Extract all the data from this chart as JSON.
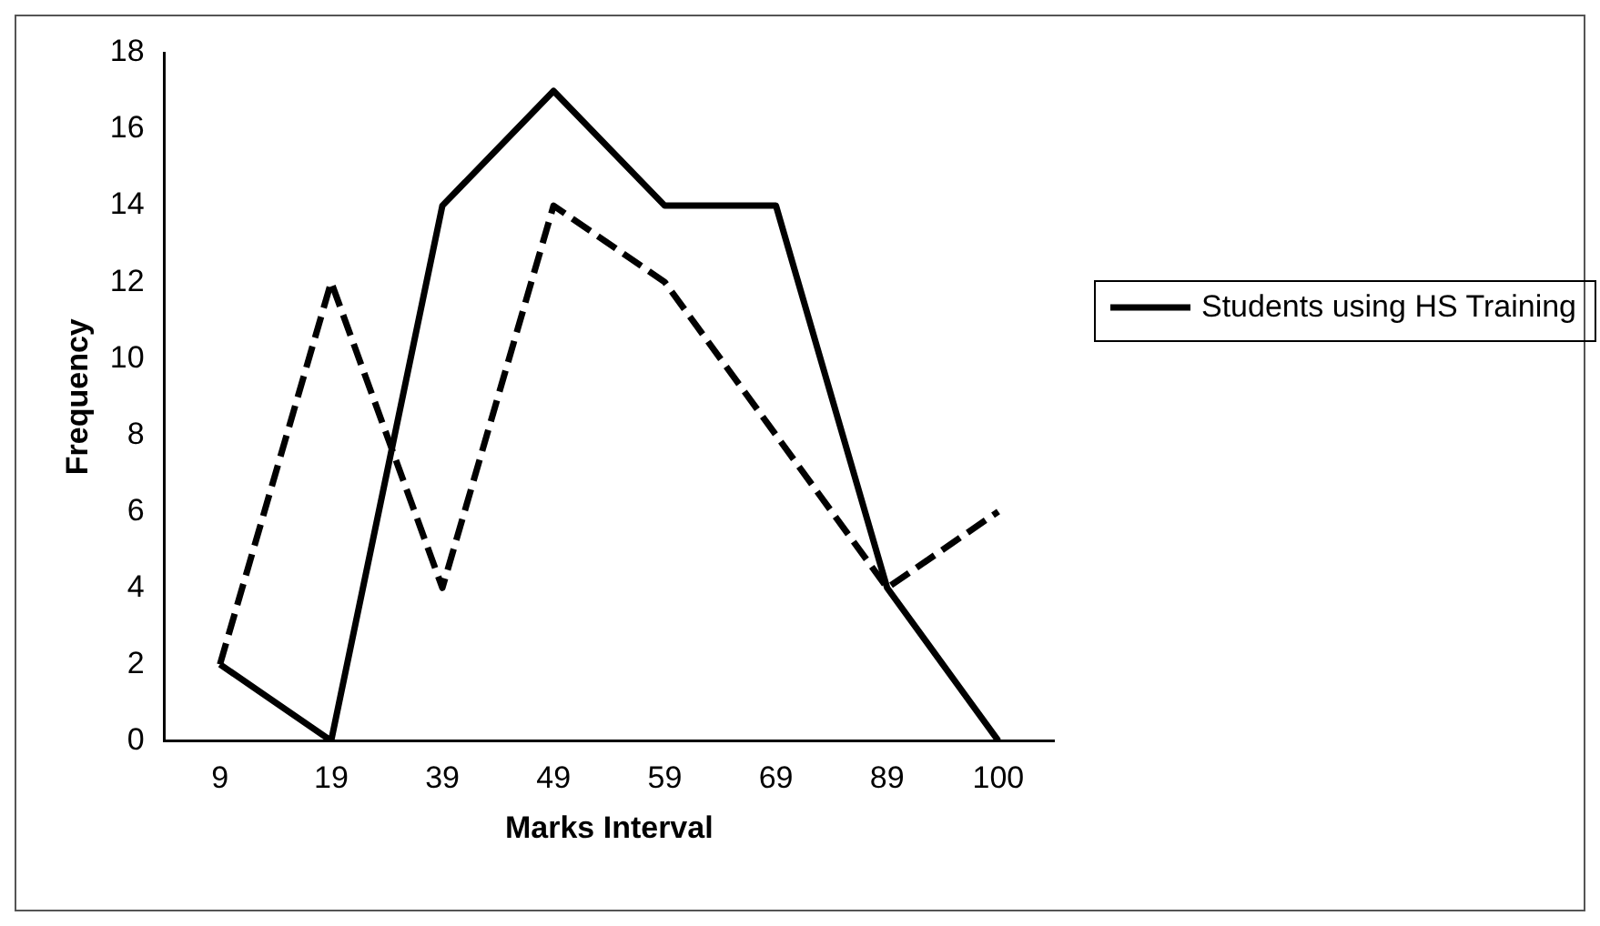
{
  "chart_data": {
    "type": "line",
    "xlabel": "Marks Interval",
    "ylabel": "Frequency",
    "categories": [
      "9",
      "19",
      "39",
      "49",
      "59",
      "69",
      "89",
      "100"
    ],
    "series": [
      {
        "name": "Students using HS Training",
        "color": "#000000",
        "values": [
          2,
          0,
          14,
          17,
          14,
          14,
          4,
          0
        ],
        "line_style": "solid"
      },
      {
        "color": "#000000",
        "values": [
          2,
          12,
          4,
          14,
          12,
          8,
          4,
          6
        ],
        "line_style": "dashed"
      }
    ],
    "ylim": [
      0,
      18
    ],
    "yticks": [
      0,
      2,
      4,
      6,
      8,
      10,
      12,
      14,
      16,
      18
    ],
    "grid": false,
    "legend": "right",
    "marker": "none"
  }
}
